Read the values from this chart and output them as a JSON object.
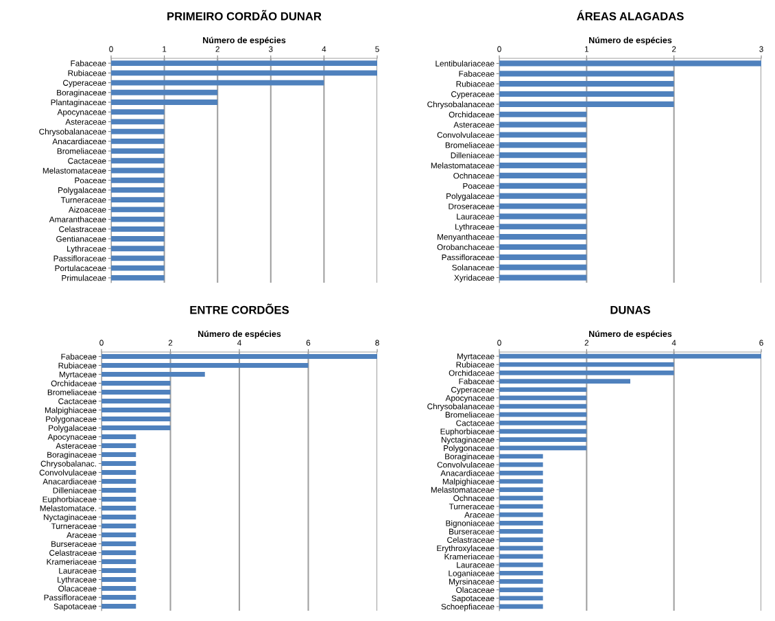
{
  "chart_data": [
    {
      "type": "bar",
      "orientation": "horizontal",
      "title": "PRIMEIRO CORDÃO DUNAR",
      "xlabel": "Número de espécies",
      "categories": [
        "Fabaceae",
        "Rubiaceae",
        "Cyperaceae",
        "Boraginaceae",
        "Plantaginaceae",
        "Apocynaceae",
        "Asteraceae",
        "Chrysobalanaceae",
        "Anacardiaceae",
        "Bromeliaceae",
        "Cactaceae",
        "Melastomataceae",
        "Poaceae",
        "Polygalaceae",
        "Turneraceae",
        "Aizoaceae",
        "Amaranthaceae",
        "Celastraceae",
        "Gentianaceae",
        "Lythraceae",
        "Passifloraceae",
        "Portulacaceae",
        "Primulaceae"
      ],
      "values": [
        5,
        5,
        4,
        2,
        2,
        1,
        1,
        1,
        1,
        1,
        1,
        1,
        1,
        1,
        1,
        1,
        1,
        1,
        1,
        1,
        1,
        1,
        1
      ],
      "color": "#4f81bd",
      "xlim": [
        0,
        5
      ],
      "xticks": [
        0,
        1,
        2,
        3,
        4,
        5
      ],
      "grid": "x"
    },
    {
      "type": "bar",
      "orientation": "horizontal",
      "title": "ÁREAS ALAGADAS",
      "xlabel": "Número de espécies",
      "categories": [
        "Lentibulariaceae",
        "Fabaceae",
        "Rubiaceae",
        "Cyperaceae",
        "Chrysobalanaceae",
        "Orchidaceae",
        "Asteraceae",
        "Convolvulaceae",
        "Bromeliaceae",
        "Dilleniaceae",
        "Melastomataceae",
        "Ochnaceae",
        "Poaceae",
        "Polygalaceae",
        "Droseraceae",
        "Lauraceae",
        "Lythraceae",
        "Menyanthaceae",
        "Orobanchaceae",
        "Passifloraceae",
        "Solanaceae",
        "Xyridaceae"
      ],
      "values": [
        3,
        2,
        2,
        2,
        2,
        1,
        1,
        1,
        1,
        1,
        1,
        1,
        1,
        1,
        1,
        1,
        1,
        1,
        1,
        1,
        1,
        1
      ],
      "color": "#4f81bd",
      "xlim": [
        0,
        3
      ],
      "xticks": [
        0,
        1,
        2,
        3
      ],
      "grid": "x"
    },
    {
      "type": "bar",
      "orientation": "horizontal",
      "title": "ENTRE CORDÕES",
      "xlabel": "Número de espécies",
      "categories": [
        "Fabaceae",
        "Rubiaceae",
        "Myrtaceae",
        "Orchidaceae",
        "Bromeliaceae",
        "Cactaceae",
        "Malpighiaceae",
        "Polygonaceae",
        "Polygalaceae",
        "Apocynaceae",
        "Asteraceae",
        "Boraginaceae",
        "Chrysobalanac.",
        "Convolvulaceae",
        "Anacardiaceae",
        "Dilleniaceae",
        "Euphorbiaceae",
        "Melastomatace.",
        "Nyctaginaceae",
        "Turneraceae",
        "Araceae",
        "Burseraceae",
        "Celastraceae",
        "Krameriaceae",
        "Lauraceae",
        "Lythraceae",
        "Olacaceae",
        "Passifloraceae",
        "Sapotaceae"
      ],
      "values": [
        8,
        6,
        3,
        2,
        2,
        2,
        2,
        2,
        2,
        1,
        1,
        1,
        1,
        1,
        1,
        1,
        1,
        1,
        1,
        1,
        1,
        1,
        1,
        1,
        1,
        1,
        1,
        1,
        1
      ],
      "color": "#4f81bd",
      "xlim": [
        0,
        8
      ],
      "xticks": [
        0,
        2,
        4,
        6,
        8
      ],
      "grid": "x"
    },
    {
      "type": "bar",
      "orientation": "horizontal",
      "title": "DUNAS",
      "xlabel": "Número de espécies",
      "categories": [
        "Myrtaceae",
        "Rubiaceae",
        "Orchidaceae",
        "Fabaceae",
        "Cyperaceae",
        "Apocynaceae",
        "Chrysobalanaceae",
        "Bromeliaceae",
        "Cactaceae",
        "Euphorbiaceae",
        "Nyctaginaceae",
        "Polygonaceae",
        "Boraginaceae",
        "Convolvulaceae",
        "Anacardiaceae",
        "Malpighiaceae",
        "Melastomataceae",
        "Ochnaceae",
        "Turneraceae",
        "Araceae",
        "Bignoniaceae",
        "Burseraceae",
        "Celastraceae",
        "Erythroxylaceae",
        "Krameriaceae",
        "Lauraceae",
        "Loganiaceae",
        "Myrsinaceae",
        "Olacaceae",
        "Sapotaceae",
        "Schoepfiaceae"
      ],
      "values": [
        6,
        4,
        4,
        3,
        2,
        2,
        2,
        2,
        2,
        2,
        2,
        2,
        1,
        1,
        1,
        1,
        1,
        1,
        1,
        1,
        1,
        1,
        1,
        1,
        1,
        1,
        1,
        1,
        1,
        1,
        1
      ],
      "color": "#4f81bd",
      "xlim": [
        0,
        6
      ],
      "xticks": [
        0,
        2,
        4,
        6
      ],
      "grid": "x"
    }
  ]
}
